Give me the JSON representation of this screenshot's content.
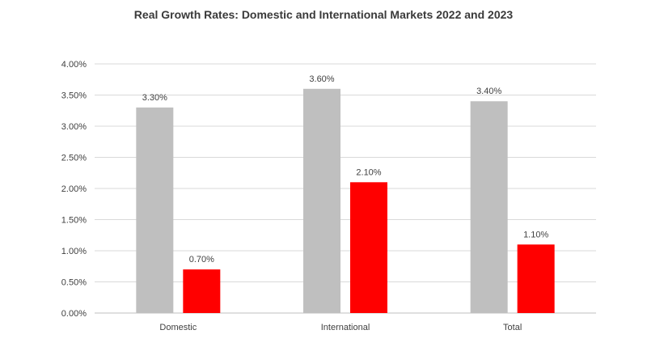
{
  "chart_data": {
    "type": "bar",
    "title": "Real Growth Rates: Domestic and International Markets 2022 and 2023",
    "categories": [
      "Domestic",
      "International",
      "Total"
    ],
    "series": [
      {
        "name": "2022",
        "values": [
          3.3,
          3.6,
          3.4
        ],
        "labels": [
          "3.30%",
          "3.60%",
          "3.40%"
        ],
        "color": "#bfbfbf"
      },
      {
        "name": "2023",
        "values": [
          0.7,
          2.1,
          1.1
        ],
        "labels": [
          "0.70%",
          "2.10%",
          "1.10%"
        ],
        "color": "#ff0000"
      }
    ],
    "ylim": [
      0,
      4.0
    ],
    "yticks": [
      0.0,
      0.5,
      1.0,
      1.5,
      2.0,
      2.5,
      3.0,
      3.5,
      4.0
    ],
    "ytick_labels": [
      "0.00%",
      "0.50%",
      "1.00%",
      "1.50%",
      "2.00%",
      "2.50%",
      "3.00%",
      "3.50%",
      "4.00%"
    ],
    "xlabel": "",
    "ylabel": "",
    "grid": true,
    "legend": "none"
  },
  "colors": {
    "grid": "#d9d9d9",
    "axis": "#bfbfbf"
  }
}
